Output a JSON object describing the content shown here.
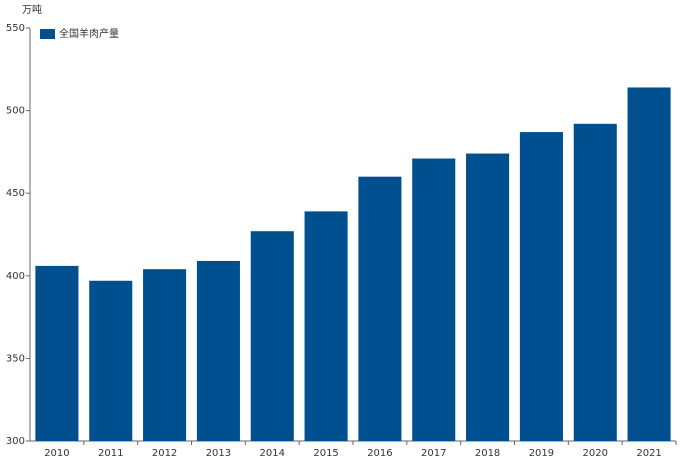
{
  "chart_data": {
    "type": "bar",
    "y_label": "万吨",
    "categories": [
      "2010",
      "2011",
      "2012",
      "2013",
      "2014",
      "2015",
      "2016",
      "2017",
      "2018",
      "2019",
      "2020",
      "2021"
    ],
    "series": [
      {
        "name": "全国羊肉产量",
        "color": "#00508f",
        "values": [
          406,
          397,
          404,
          409,
          427,
          439,
          460,
          471,
          474,
          487,
          492,
          514
        ]
      }
    ],
    "ylim": [
      300,
      550
    ],
    "yticks": [
      300,
      350,
      400,
      450,
      500,
      550
    ]
  }
}
